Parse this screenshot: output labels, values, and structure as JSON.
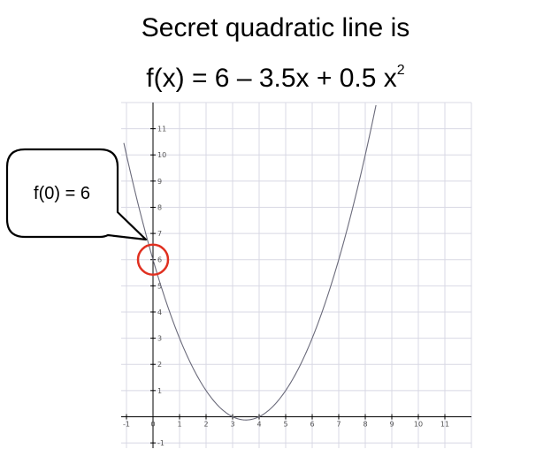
{
  "title": {
    "line1": "Secret quadratic line is",
    "line2_main": "f(x) = 6 – 3.5x + 0.5 x",
    "line2_sup": "2"
  },
  "callout": {
    "text": "f(0) = 6",
    "highlight_point": [
      0,
      6
    ],
    "highlight_color": "#e03020"
  },
  "chart_data": {
    "type": "line",
    "title": "Secret quadratic line is f(x) = 6 – 3.5x + 0.5 x²",
    "xlabel": "",
    "ylabel": "",
    "xlim": [
      -1.2,
      12
    ],
    "ylim": [
      -1.2,
      12
    ],
    "grid": true,
    "x_ticks": [
      -1,
      0,
      1,
      2,
      3,
      4,
      5,
      6,
      7,
      8,
      9,
      10,
      11
    ],
    "y_ticks": [
      -1,
      1,
      2,
      3,
      4,
      5,
      6,
      7,
      8,
      9,
      10,
      11
    ],
    "function": "6 - 3.5x + 0.5x^2",
    "coefficients": {
      "a": 0.5,
      "b": -3.5,
      "c": 6
    },
    "domain": [
      -1.1,
      8.5
    ],
    "x_tick_labels": [
      "-1",
      "0",
      "1",
      "2",
      "3",
      "4",
      "5",
      "6",
      "7",
      "8",
      "9",
      "10",
      "11"
    ],
    "y_tick_labels": [
      "-1",
      "1",
      "2",
      "3",
      "4",
      "5",
      "6",
      "7",
      "8",
      "9",
      "10",
      "11"
    ],
    "line_color": "#6a6a7a",
    "axis_color": "#000000",
    "grid_color": "#d8d8e4"
  }
}
